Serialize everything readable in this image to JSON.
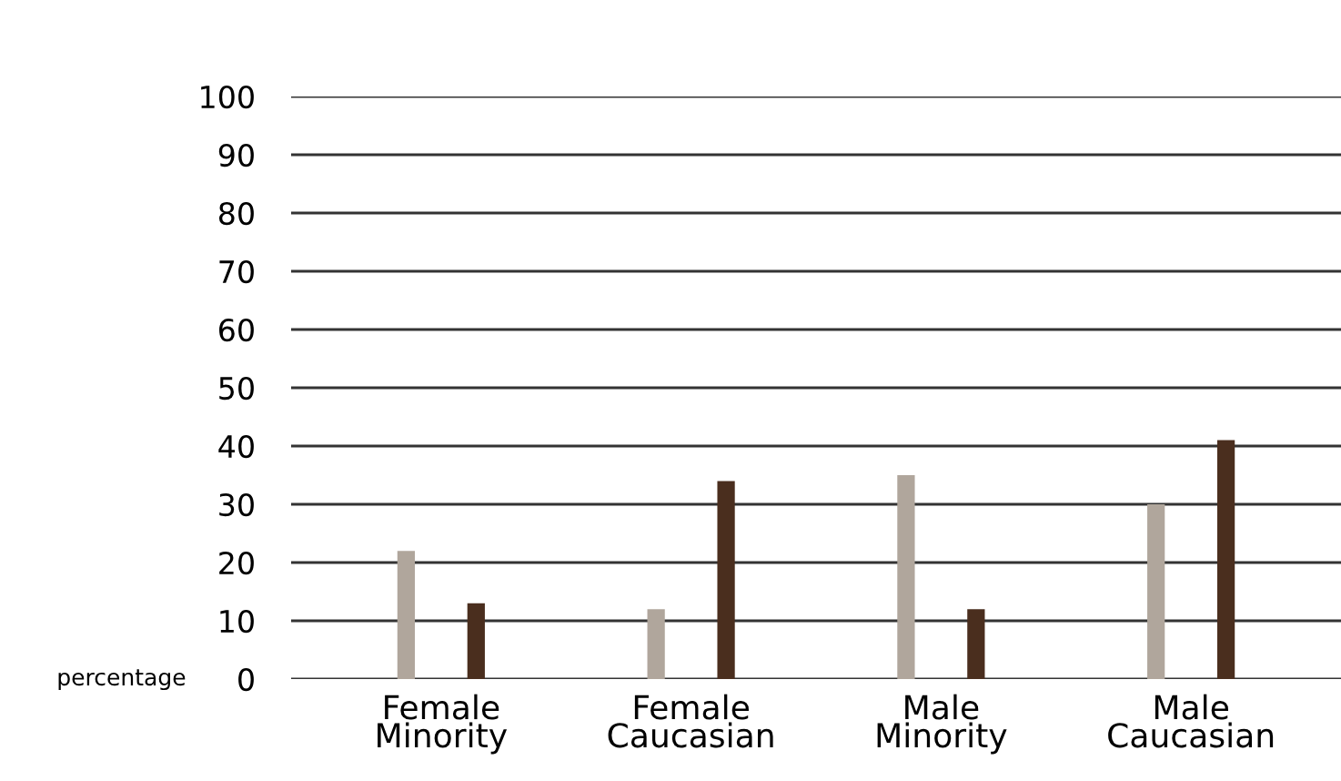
{
  "chart_data": {
    "type": "bar",
    "ylabel": "percentage",
    "categories": [
      "Female\nMinority",
      "Female\nCaucasian",
      "Male\nMinority",
      "Male\nCaucasian"
    ],
    "series": [
      {
        "color": "#b0a69c",
        "values": [
          22,
          12,
          35,
          30
        ]
      },
      {
        "color": "#4a2e1e",
        "values": [
          13,
          34,
          12,
          41
        ]
      }
    ],
    "ylim": [
      0,
      100
    ],
    "yticks": [
      0,
      10,
      20,
      30,
      40,
      50,
      60,
      70,
      80,
      90,
      100
    ],
    "grid": "y",
    "legend": false
  }
}
